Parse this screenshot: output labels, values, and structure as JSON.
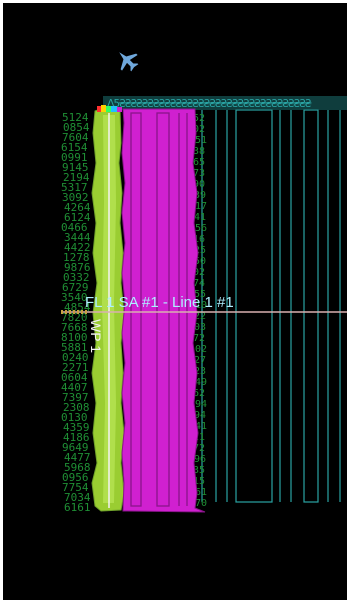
{
  "colors": {
    "background": "#000000",
    "screen_border": "#ffffff",
    "green_swath": "#9acd32",
    "green_swath_dark": "#6fa12a",
    "magenta_swath": "#d020d0",
    "magenta_swath_dark": "#8a148a",
    "teal_grid": "#2aa3a3",
    "green_digits": "#1f8f35",
    "label_cyan": "#aef0ff",
    "waypoint_white": "#f2f2f2",
    "flight_line": "#d9b0b0",
    "waypoint_marker": "#c8a040",
    "aircraft": "#6fa8dc"
  },
  "aircraft": {
    "icon": "airplane-icon"
  },
  "flight_line": {
    "label": "FL 1 SA #1 - Line 1 #1",
    "waypoint_label": "WP 1"
  }
}
